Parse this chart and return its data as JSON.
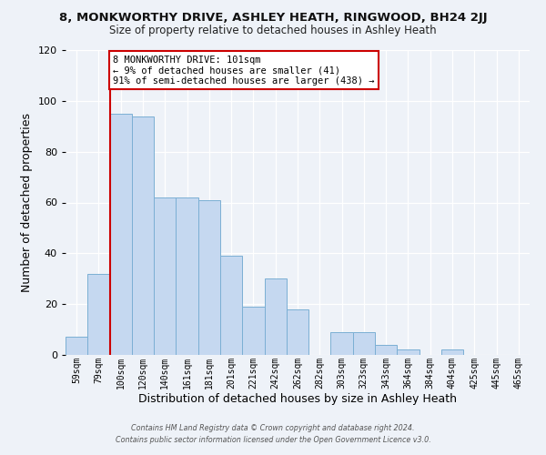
{
  "title": "8, MONKWORTHY DRIVE, ASHLEY HEATH, RINGWOOD, BH24 2JJ",
  "subtitle": "Size of property relative to detached houses in Ashley Heath",
  "xlabel": "Distribution of detached houses by size in Ashley Heath",
  "ylabel": "Number of detached properties",
  "bar_labels": [
    "59sqm",
    "79sqm",
    "100sqm",
    "120sqm",
    "140sqm",
    "161sqm",
    "181sqm",
    "201sqm",
    "221sqm",
    "242sqm",
    "262sqm",
    "282sqm",
    "303sqm",
    "323sqm",
    "343sqm",
    "364sqm",
    "384sqm",
    "404sqm",
    "425sqm",
    "445sqm",
    "465sqm"
  ],
  "bar_values": [
    7,
    32,
    95,
    94,
    62,
    62,
    61,
    39,
    19,
    30,
    18,
    0,
    9,
    9,
    4,
    2,
    0,
    2,
    0,
    0,
    0
  ],
  "bar_color": "#c5d8f0",
  "bar_edge_color": "#7bafd4",
  "marker_bar_index": 2,
  "marker_color": "#cc0000",
  "ylim": [
    0,
    120
  ],
  "yticks": [
    0,
    20,
    40,
    60,
    80,
    100,
    120
  ],
  "annotation_title": "8 MONKWORTHY DRIVE: 101sqm",
  "annotation_line1": "← 9% of detached houses are smaller (41)",
  "annotation_line2": "91% of semi-detached houses are larger (438) →",
  "annotation_box_color": "#ffffff",
  "annotation_box_edge": "#cc0000",
  "footer_line1": "Contains HM Land Registry data © Crown copyright and database right 2024.",
  "footer_line2": "Contains public sector information licensed under the Open Government Licence v3.0.",
  "background_color": "#eef2f8",
  "axes_background": "#eef2f8"
}
